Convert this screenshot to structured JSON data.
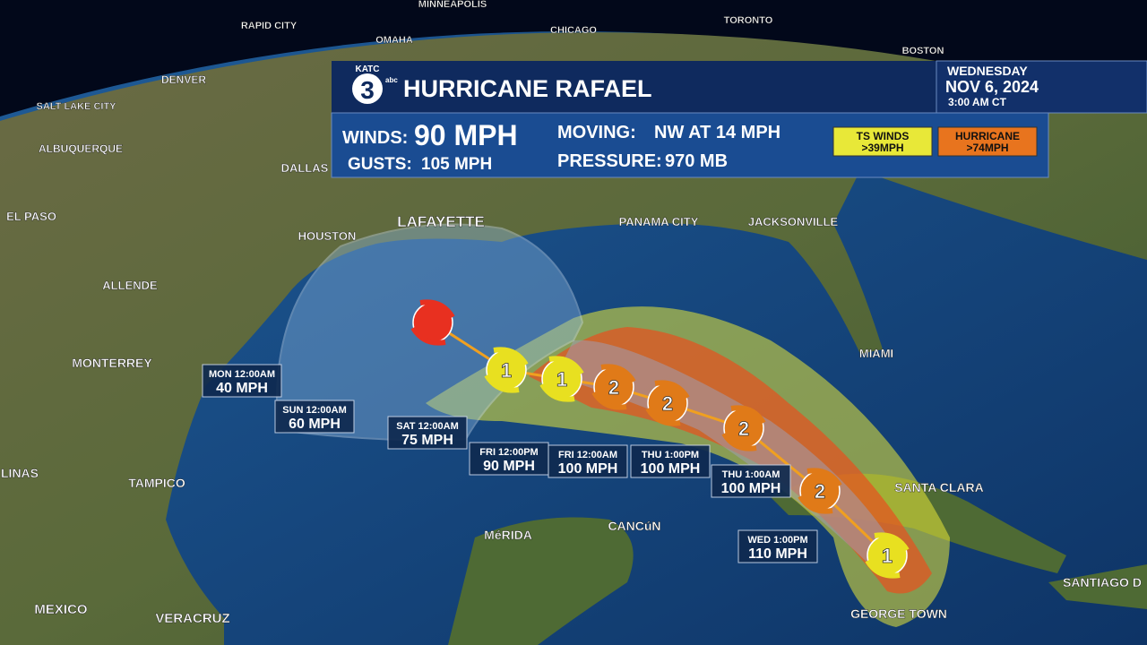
{
  "header": {
    "logo": {
      "station": "KATC",
      "channel": "3",
      "network": "abc"
    },
    "title": "HURRICANE RAFAEL",
    "day": "WEDNESDAY",
    "date": "NOV 6, 2024",
    "time": "3:00 AM CT"
  },
  "stats": {
    "winds_label": "WINDS:",
    "winds": "90 MPH",
    "gusts_label": "GUSTS:",
    "gusts": "105 MPH",
    "moving_label": "MOVING:",
    "moving": "NW AT 14 MPH",
    "pressure_label": "PRESSURE:",
    "pressure": "970 MB"
  },
  "legend": [
    {
      "name": "TS WINDS",
      "threshold": ">39MPH",
      "color": "#e8e838"
    },
    {
      "name": "HURRICANE",
      "threshold": ">74MPH",
      "color": "#e8741e"
    }
  ],
  "cities": [
    "MINNEAPOLIS",
    "CHICAGO",
    "TORONTO",
    "BOSTON",
    "OMAHA",
    "RAPID CITY",
    "DENVER",
    "SALT LAKE CITY",
    "ALBUQUERQUE",
    "DALLAS",
    "EL PASO",
    "HOUSTON",
    "LAFAYETTE",
    "PANAMA CITY",
    "JACKSONVILLE",
    "MIAMI",
    "ALLENDE",
    "MONTERREY",
    "TAMPICO",
    "LINAS",
    "MEXICO",
    "VERACRUZ",
    "MéRIDA",
    "CANCúN",
    "SANTA CLARA",
    "SANTIAGO D",
    "GEORGE TOWN"
  ],
  "forecast": [
    {
      "time": "WED 1:00PM",
      "wind": "110 MPH",
      "category": "1",
      "color": "#e8e020"
    },
    {
      "time": "THU 1:00AM",
      "wind": "100 MPH",
      "category": "2",
      "color": "#e07a18"
    },
    {
      "time": "THU 1:00PM",
      "wind": "100 MPH",
      "category": "2",
      "color": "#e07a18"
    },
    {
      "time": "FRI 12:00AM",
      "wind": "100 MPH",
      "category": "2",
      "color": "#e07a18"
    },
    {
      "time": "FRI 12:00PM",
      "wind": "90 MPH",
      "category": "2",
      "color": "#e07a18"
    },
    {
      "time": "SAT 12:00AM",
      "wind": "75 MPH",
      "category": "1",
      "color": "#e8e020"
    },
    {
      "time": "SUN 12:00AM",
      "wind": "60 MPH",
      "category": "1",
      "color": "#e8e020"
    },
    {
      "time": "MON 12:00AM",
      "wind": "40 MPH",
      "color": "#e83020"
    }
  ]
}
